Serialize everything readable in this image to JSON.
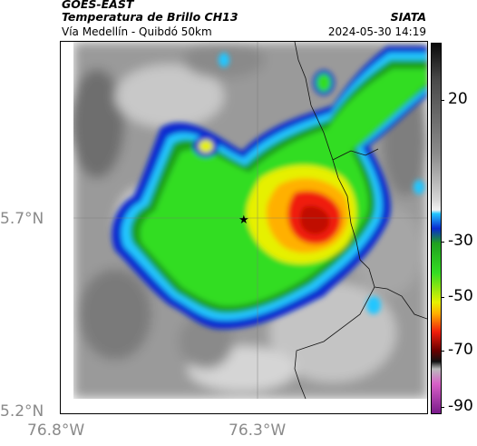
{
  "header": {
    "satellite": "GOES-EAST",
    "product": "Temperatura de Brillo CH13",
    "institution": "SIATA",
    "subtitle": "Vía Medellín - Quibdó 50km",
    "datetime": "2024-05-30 14:19"
  },
  "axes": {
    "lat_labels": [
      "5.7°N",
      "5.2°N"
    ],
    "lon_labels": [
      "76.8°W",
      "76.3°W"
    ]
  },
  "colorbar": {
    "labels": [
      "20",
      "-30",
      "-50",
      "-70",
      "-90"
    ],
    "colors": [
      "#0a0a0a",
      "#4a4a4a",
      "#8c8c8c",
      "#d4d4d4",
      "#f2f2f2",
      "#23c6ff",
      "#0a2ad0",
      "#1fa01f",
      "#33dd22",
      "#e6f000",
      "#ffb000",
      "#f01d0b",
      "#6a0000",
      "#111111",
      "#bbbbbb",
      "#d860c8",
      "#7a1a8a"
    ]
  },
  "marker": {
    "icon": "star-icon"
  }
}
